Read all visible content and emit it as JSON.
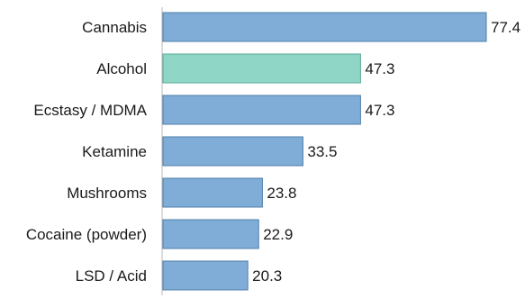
{
  "chart_data": {
    "type": "bar",
    "orientation": "horizontal",
    "categories": [
      "Cannabis",
      "Alcohol",
      "Ecstasy / MDMA",
      "Ketamine",
      "Mushrooms",
      "Cocaine (powder)",
      "LSD / Acid"
    ],
    "values": [
      77.4,
      47.3,
      47.3,
      33.5,
      23.8,
      22.9,
      20.3
    ],
    "highlight_index": 1,
    "colors": {
      "bar": "#7fadd7",
      "bar_border": "#4f7ea8",
      "highlight": "#8fd6c6",
      "highlight_border": "#5aa894",
      "axis": "#b8b8b8"
    },
    "title": "",
    "xlabel": "",
    "ylabel": "",
    "xlim": [
      0,
      80
    ],
    "grid": false,
    "legend": "none"
  }
}
